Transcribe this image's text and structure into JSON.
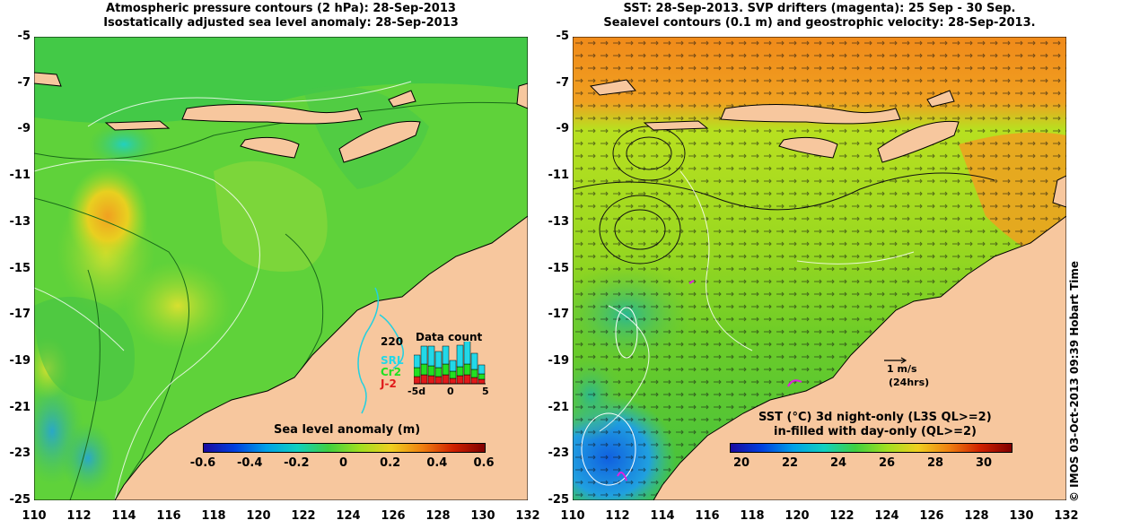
{
  "left_panel": {
    "title_line1": "Atmospheric pressure contours (2 hPa): 28-Sep-2013",
    "title_line2": "Isostatically adjusted sea level anomaly: 28-Sep-2013",
    "colorbar_label": "Sea level anomaly (m)",
    "colorbar_ticks": [
      "-0.6",
      "-0.4",
      "-0.2",
      "0",
      "0.2",
      "0.4",
      "0.6"
    ],
    "inset_title": "Data count",
    "inset_max": "220",
    "inset_series": [
      "SRL",
      "Cr2",
      "J-2"
    ],
    "inset_xticks": [
      "-5d",
      "0",
      "5"
    ]
  },
  "right_panel": {
    "title_line1": "SST: 28-Sep-2013. SVP drifters (magenta): 25 Sep - 30 Sep.",
    "title_line2": "Sealevel contours (0.1 m) and geostrophic velocity: 28-Sep-2013.",
    "scale_label1": "1 m/s",
    "scale_label2": "(24hrs)",
    "colorbar_label1": "SST (°C)  3d night-only (L3S QL>=2)",
    "colorbar_label2": "in-filled with day-only (QL>=2)",
    "colorbar_ticks": [
      "20",
      "22",
      "24",
      "26",
      "28",
      "30"
    ]
  },
  "axes": {
    "y_ticks": [
      "-5",
      "-7",
      "-9",
      "-11",
      "-13",
      "-15",
      "-17",
      "-19",
      "-21",
      "-23",
      "-25"
    ],
    "x_ticks": [
      "110",
      "112",
      "114",
      "116",
      "118",
      "120",
      "122",
      "124",
      "126",
      "128",
      "130",
      "132"
    ]
  },
  "credit": "© IMOS 03-Oct-2013 09:39 Hobart Time",
  "colors": {
    "land": "#f7c79e",
    "sla_green": "#5fd23a",
    "sst_orange": "#f08a1a",
    "sst_green": "#7ed224"
  }
}
